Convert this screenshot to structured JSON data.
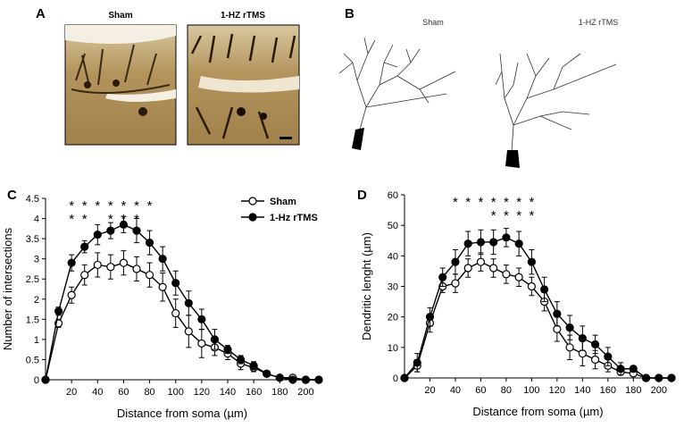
{
  "panels": [
    {
      "label": "A",
      "captions": [
        "Sham",
        "1-HZ rTMS"
      ]
    },
    {
      "label": "B",
      "captions": [
        "Sham",
        "1-HZ rTMS"
      ]
    }
  ],
  "chart_data": [
    {
      "type": "line",
      "label": "C",
      "xlabel": "Distance from soma (µm)",
      "ylabel": "Number of intersections",
      "x": [
        0,
        10,
        20,
        30,
        40,
        50,
        60,
        70,
        80,
        90,
        100,
        110,
        120,
        130,
        140,
        150,
        160,
        170,
        180,
        190,
        200,
        210
      ],
      "xlim": [
        0,
        210
      ],
      "xticks": [
        20,
        40,
        60,
        80,
        100,
        120,
        140,
        160,
        180,
        200
      ],
      "ylim": [
        0,
        4.5
      ],
      "yticks": [
        0,
        0.5,
        1,
        1.5,
        2,
        2.5,
        3,
        3.5,
        4,
        4.5
      ],
      "series": [
        {
          "name": "Sham",
          "color": "#ffffff",
          "values": [
            0,
            1.4,
            2.1,
            2.6,
            2.85,
            2.8,
            2.9,
            2.75,
            2.6,
            2.3,
            1.65,
            1.2,
            0.9,
            0.8,
            0.65,
            0.4,
            0.3,
            0.15,
            0.05,
            0.05,
            0,
            0
          ],
          "errors": [
            0,
            0.1,
            0.2,
            0.25,
            0.3,
            0.3,
            0.3,
            0.3,
            0.3,
            0.35,
            0.35,
            0.4,
            0.35,
            0.2,
            0.15,
            0.15,
            0.1,
            0.05,
            0.05,
            0.05,
            0,
            0
          ]
        },
        {
          "name": "1-Hz rTMS",
          "color": "#000000",
          "values": [
            0,
            1.7,
            2.9,
            3.3,
            3.6,
            3.7,
            3.85,
            3.7,
            3.4,
            3.0,
            2.4,
            1.9,
            1.5,
            1.0,
            0.75,
            0.5,
            0.35,
            0.15,
            0.05,
            0,
            0,
            0
          ],
          "errors": [
            0,
            0.1,
            0.2,
            0.15,
            0.25,
            0.2,
            0.2,
            0.3,
            0.3,
            0.3,
            0.3,
            0.3,
            0.25,
            0.25,
            0.1,
            0.1,
            0.1,
            0.05,
            0.05,
            0,
            0,
            0
          ]
        }
      ],
      "significance": [
        {
          "x": 20,
          "marks": [
            "*",
            "*"
          ]
        },
        {
          "x": 30,
          "marks": [
            "*",
            "*"
          ]
        },
        {
          "x": 40,
          "marks": [
            "*"
          ]
        },
        {
          "x": 50,
          "marks": [
            "*",
            "*"
          ]
        },
        {
          "x": 60,
          "marks": [
            "*",
            "*"
          ]
        },
        {
          "x": 70,
          "marks": [
            "*",
            "*"
          ]
        },
        {
          "x": 80,
          "marks": [
            "*"
          ]
        }
      ],
      "legend": "top-right"
    },
    {
      "type": "line",
      "label": "D",
      "xlabel": "Distance from soma (µm)",
      "ylabel": "Dendritic lenght (µm)",
      "x": [
        0,
        10,
        20,
        30,
        40,
        50,
        60,
        70,
        80,
        90,
        100,
        110,
        120,
        130,
        140,
        150,
        160,
        170,
        180,
        190,
        200,
        210
      ],
      "xlim": [
        0,
        210
      ],
      "xticks": [
        20,
        40,
        60,
        80,
        100,
        120,
        140,
        160,
        180,
        200
      ],
      "ylim": [
        0,
        60
      ],
      "yticks": [
        0,
        10,
        20,
        30,
        40,
        50,
        60
      ],
      "series": [
        {
          "name": "Sham",
          "color": "#ffffff",
          "values": [
            0,
            4,
            18,
            30,
            31,
            36,
            38,
            36,
            34,
            33,
            30,
            25,
            16,
            10,
            8,
            6,
            4,
            2,
            1.5,
            0,
            0,
            0
          ],
          "errors": [
            0,
            2,
            3,
            2,
            3,
            3,
            3,
            3,
            3,
            3,
            3,
            3,
            4,
            4,
            4,
            3,
            2,
            1,
            1,
            0,
            0,
            0
          ]
        },
        {
          "name": "1-Hz rTMS",
          "color": "#000000",
          "values": [
            0,
            5,
            20,
            33,
            38,
            44,
            44.5,
            44.5,
            46,
            44,
            38,
            29,
            21,
            16.5,
            13,
            11,
            7,
            3,
            3,
            0,
            0,
            0
          ],
          "errors": [
            0,
            3,
            3,
            3,
            4,
            4,
            4,
            4,
            3,
            4,
            4,
            4,
            4,
            4,
            4,
            3,
            3,
            2,
            1,
            0,
            0,
            0
          ]
        }
      ],
      "significance": [
        {
          "x": 40,
          "marks": [
            "*"
          ]
        },
        {
          "x": 50,
          "marks": [
            "*"
          ]
        },
        {
          "x": 60,
          "marks": [
            "*"
          ]
        },
        {
          "x": 70,
          "marks": [
            "*",
            "*"
          ]
        },
        {
          "x": 80,
          "marks": [
            "*",
            "*"
          ]
        },
        {
          "x": 90,
          "marks": [
            "*",
            "*"
          ]
        },
        {
          "x": 100,
          "marks": [
            "*",
            "*"
          ]
        }
      ]
    }
  ]
}
